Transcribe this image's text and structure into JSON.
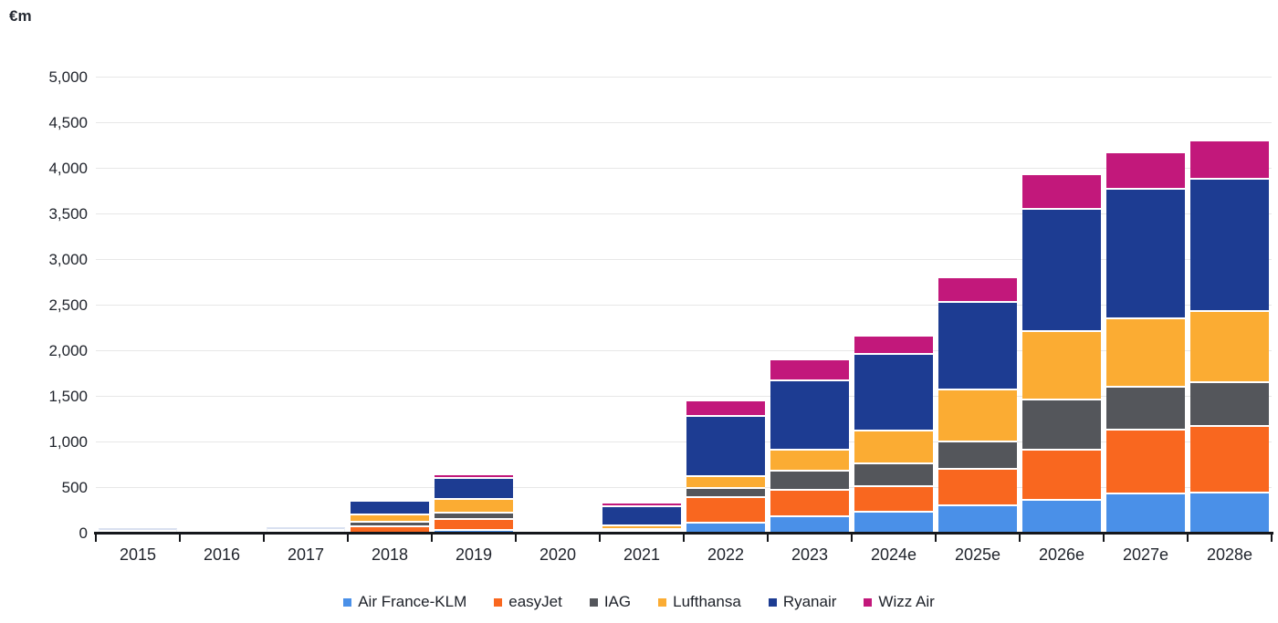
{
  "chart_data": {
    "type": "bar",
    "stacked": true,
    "unit_label": "€m",
    "categories": [
      "2015",
      "2016",
      "2017",
      "2018",
      "2019",
      "2020",
      "2021",
      "2022",
      "2023",
      "2024e",
      "2025e",
      "2026e",
      "2027e",
      "2028e"
    ],
    "series": [
      {
        "name": "Air France-KLM",
        "color": "#4a90e8",
        "values": [
          0,
          0,
          0,
          0,
          30,
          0,
          25,
          110,
          180,
          230,
          300,
          360,
          430,
          440
        ]
      },
      {
        "name": "easyJet",
        "color": "#f9671f",
        "values": [
          0,
          0,
          0,
          70,
          120,
          0,
          0,
          280,
          290,
          280,
          400,
          550,
          700,
          730
        ]
      },
      {
        "name": "IAG",
        "color": "#54565b",
        "values": [
          0,
          0,
          0,
          55,
          75,
          0,
          15,
          100,
          210,
          250,
          300,
          550,
          470,
          480
        ]
      },
      {
        "name": "Lufthansa",
        "color": "#fbac33",
        "values": [
          0,
          0,
          0,
          80,
          150,
          0,
          35,
          135,
          230,
          360,
          570,
          750,
          750,
          780
        ]
      },
      {
        "name": "Ryanair",
        "color": "#1d3c92",
        "values": [
          0,
          0,
          0,
          150,
          225,
          0,
          215,
          660,
          760,
          840,
          960,
          1340,
          1420,
          1450
        ]
      },
      {
        "name": "Wizz Air",
        "color": "#c2187b",
        "values": [
          0,
          0,
          0,
          0,
          40,
          0,
          35,
          170,
          230,
          200,
          270,
          380,
          400,
          420
        ]
      }
    ],
    "faint_bars": [
      {
        "category": "2015",
        "approx_total": 60
      },
      {
        "category": "2017",
        "approx_total": 70
      }
    ],
    "y_axis": {
      "min": 0,
      "max": 5000,
      "step": 500,
      "tick_labels": [
        "0",
        "500",
        "1,000",
        "1,500",
        "2,000",
        "2,500",
        "3,000",
        "3,500",
        "4,000",
        "4,500",
        "5,000"
      ]
    },
    "x_axis": {
      "label": ""
    },
    "title": "",
    "legend_position": "bottom",
    "grid": true
  }
}
